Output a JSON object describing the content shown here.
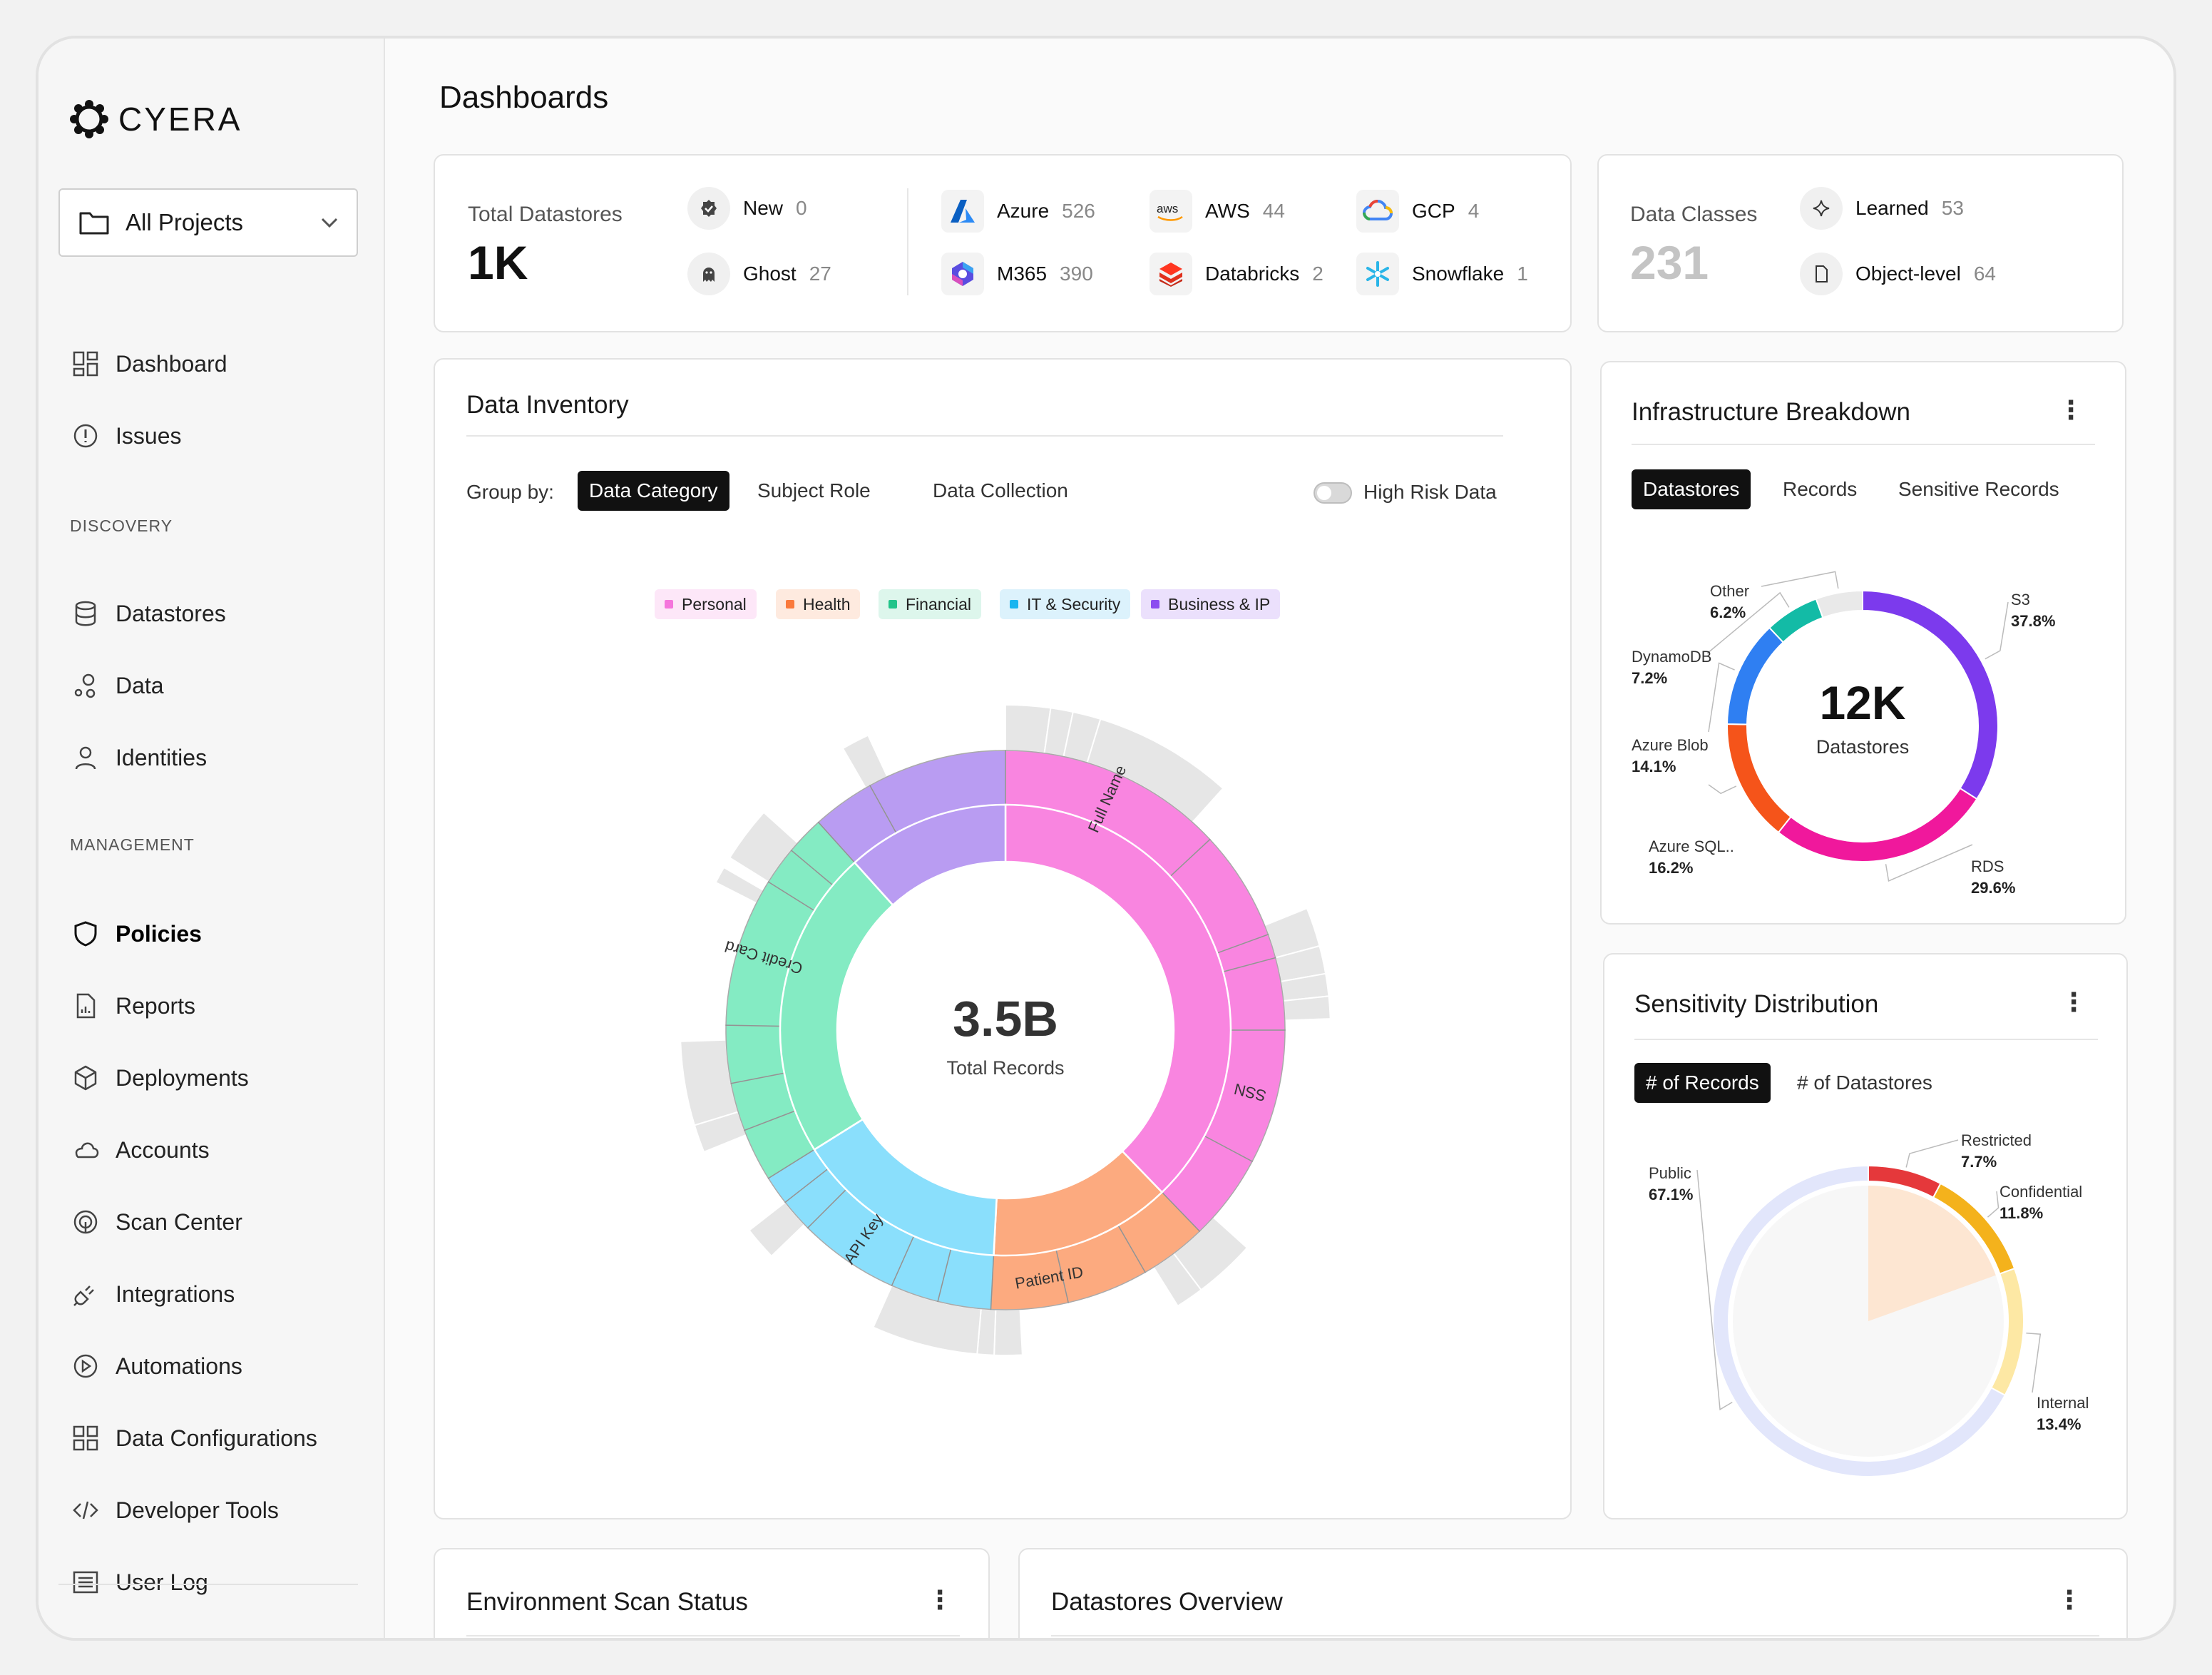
{
  "app": {
    "name": "CYERA"
  },
  "sidebar": {
    "project_selector": "All Projects",
    "items_top": [
      {
        "label": "Dashboard",
        "icon": "dashboard-grid-icon"
      },
      {
        "label": "Issues",
        "icon": "alert-circle-icon"
      }
    ],
    "discovery_heading": "DISCOVERY",
    "discovery_items": [
      {
        "label": "Datastores",
        "icon": "database-icon"
      },
      {
        "label": "Data",
        "icon": "data-nodes-icon"
      },
      {
        "label": "Identities",
        "icon": "user-icon"
      }
    ],
    "management_heading": "MANAGEMENT",
    "management_items": [
      {
        "label": "Policies",
        "icon": "shield-icon",
        "active": true
      },
      {
        "label": "Reports",
        "icon": "report-icon"
      },
      {
        "label": "Deployments",
        "icon": "cube-icon"
      },
      {
        "label": "Accounts",
        "icon": "cloud-icon"
      },
      {
        "label": "Scan Center",
        "icon": "radar-icon"
      },
      {
        "label": "Integrations",
        "icon": "plug-icon"
      },
      {
        "label": "Automations",
        "icon": "play-circle-icon"
      },
      {
        "label": "Data Configurations",
        "icon": "config-grid-icon"
      },
      {
        "label": "Developer Tools",
        "icon": "code-icon"
      },
      {
        "label": "User Log",
        "icon": "log-list-icon"
      }
    ]
  },
  "header": {
    "title": "Dashboards"
  },
  "datastores_summary": {
    "label": "Total Datastores",
    "value": "1K",
    "status": [
      {
        "label": "New",
        "count": "0"
      },
      {
        "label": "Ghost",
        "count": "27"
      }
    ],
    "providers": [
      {
        "label": "Azure",
        "count": "526",
        "icon": "azure-icon"
      },
      {
        "label": "AWS",
        "count": "44",
        "icon": "aws-icon"
      },
      {
        "label": "GCP",
        "count": "4",
        "icon": "gcp-icon"
      },
      {
        "label": "M365",
        "count": "390",
        "icon": "m365-icon"
      },
      {
        "label": "Databricks",
        "count": "2",
        "icon": "databricks-icon"
      },
      {
        "label": "Snowflake",
        "count": "1",
        "icon": "snowflake-icon"
      }
    ]
  },
  "data_classes": {
    "label": "Data Classes",
    "value": "231",
    "items": [
      {
        "label": "Learned",
        "count": "53"
      },
      {
        "label": "Object-level",
        "count": "64"
      }
    ]
  },
  "inventory": {
    "title": "Data Inventory",
    "group_by_label": "Group by:",
    "group_tabs": [
      "Data Category",
      "Subject Role",
      "Data Collection"
    ],
    "active_group": "Data Category",
    "toggle_label": "High Risk Data",
    "legend": [
      {
        "label": "Personal",
        "color": "#f576dc",
        "bg": "#fde7f8"
      },
      {
        "label": "Health",
        "color": "#fa7a3c",
        "bg": "#feeadf"
      },
      {
        "label": "Financial",
        "color": "#22c48a",
        "bg": "#ddf6ec"
      },
      {
        "label": "IT & Security",
        "color": "#19b5f0",
        "bg": "#dcf2fc"
      },
      {
        "label": "Business & IP",
        "color": "#8b4cf0",
        "bg": "#ebe0fc"
      }
    ],
    "center_value": "3.5B",
    "center_label": "Total Records",
    "segment_labels": [
      "Full Name",
      "SSN",
      "Patient ID",
      "API Key",
      "Credit Card"
    ]
  },
  "infrastructure": {
    "title": "Infrastructure Breakdown",
    "tabs": [
      "Datastores",
      "Records",
      "Sensitive Records"
    ],
    "active_tab": "Datastores",
    "center_value": "12K",
    "center_label": "Datastores",
    "slices": [
      {
        "label": "S3",
        "pct_label": "37.8%",
        "value": 37.8,
        "color": "#7c3aed"
      },
      {
        "label": "RDS",
        "pct_label": "29.6%",
        "value": 29.6,
        "color": "#f0189c"
      },
      {
        "label": "Azure SQL..",
        "pct_label": "16.2%",
        "value": 16.2,
        "color": "#f5541a"
      },
      {
        "label": "Azure Blob",
        "pct_label": "14.1%",
        "value": 14.1,
        "color": "#2f7ff2"
      },
      {
        "label": "DynamoDB",
        "pct_label": "7.2%",
        "value": 7.2,
        "color": "#13bba6"
      },
      {
        "label": "Other",
        "pct_label": "6.2%",
        "value": 6.2,
        "color": "#e9e9e9"
      }
    ]
  },
  "sensitivity": {
    "title": "Sensitivity Distribution",
    "tabs": [
      "# of Records",
      "# of Datastores"
    ],
    "active_tab": "# of Records",
    "slices": [
      {
        "label": "Restricted",
        "pct_label": "7.7%",
        "value": 7.7,
        "color": "#e5383b"
      },
      {
        "label": "Confidential",
        "pct_label": "11.8%",
        "value": 11.8,
        "color": "#f4b21c"
      },
      {
        "label": "Internal",
        "pct_label": "13.4%",
        "value": 13.4,
        "color": "#fde8a4"
      },
      {
        "label": "Public",
        "pct_label": "67.1%",
        "value": 67.1,
        "color": "#e2e6fb"
      }
    ]
  },
  "bottom_cards": {
    "scan_title": "Environment Scan Status",
    "overview_title": "Datastores Overview"
  }
}
